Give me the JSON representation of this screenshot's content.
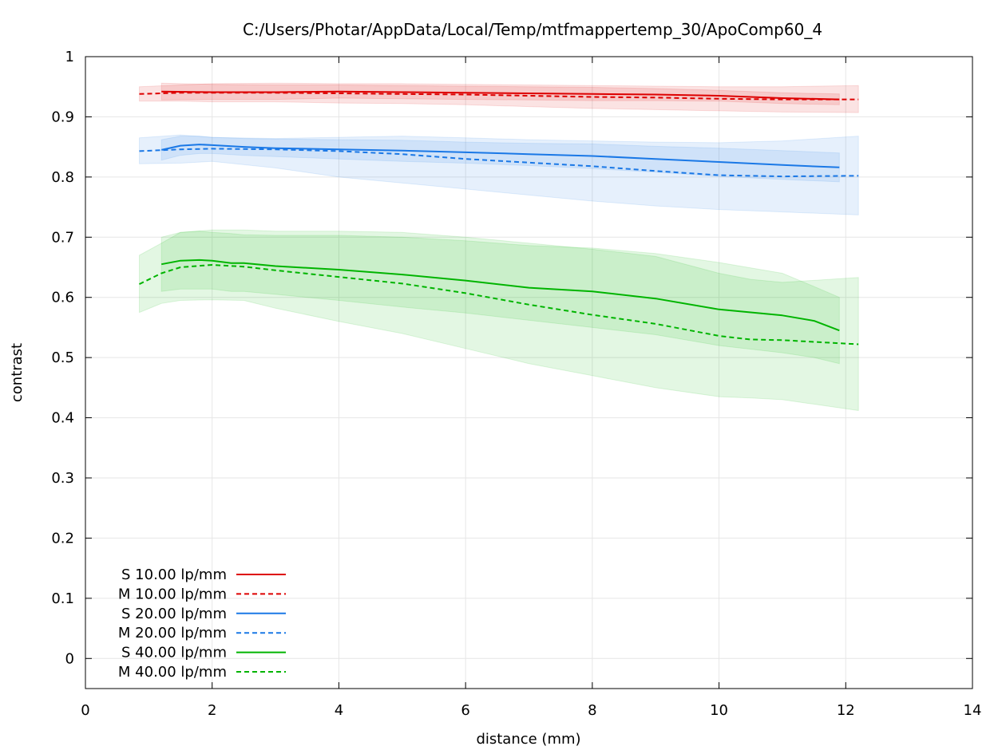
{
  "chart_data": {
    "type": "line",
    "title": "C:/Users/Photar/AppData/Local/Temp/mtfmappertemp_30/ApoComp60_4",
    "xlabel": "distance (mm)",
    "ylabel": "contrast",
    "xlim": [
      0,
      14
    ],
    "ylim": [
      -0.05,
      1.0
    ],
    "xticks": [
      0,
      2,
      4,
      6,
      8,
      10,
      12,
      14
    ],
    "yticks": [
      0,
      0.1,
      0.2,
      0.3,
      0.4,
      0.5,
      0.6,
      0.7,
      0.8,
      0.9,
      1
    ],
    "xtick_labels": [
      "0",
      "2",
      "4",
      "6",
      "8",
      "10",
      "12",
      "14"
    ],
    "ytick_labels": [
      "0",
      "0.1",
      "0.2",
      "0.3",
      "0.4",
      "0.5",
      "0.6",
      "0.7",
      "0.8",
      "0.9",
      "1"
    ],
    "grid": true,
    "legend_position": "bottom-left",
    "series": [
      {
        "name": "S 10.00 lp/mm",
        "color": "#dd0000",
        "dash": "solid",
        "x": [
          1.2,
          2,
          3,
          4,
          5,
          6,
          7,
          8,
          9,
          10,
          11,
          11.9
        ],
        "y": [
          0.942,
          0.941,
          0.941,
          0.942,
          0.941,
          0.94,
          0.939,
          0.938,
          0.937,
          0.935,
          0.931,
          0.929
        ],
        "band_upper": [
          0.956,
          0.954,
          0.953,
          0.953,
          0.952,
          0.951,
          0.95,
          0.949,
          0.947,
          0.944,
          0.94,
          0.938
        ],
        "band_lower": [
          0.928,
          0.929,
          0.929,
          0.931,
          0.93,
          0.929,
          0.928,
          0.927,
          0.927,
          0.926,
          0.922,
          0.92
        ]
      },
      {
        "name": "M 10.00 lp/mm",
        "color": "#dd0000",
        "dash": "dashed",
        "x": [
          0.85,
          1.5,
          2,
          3,
          4,
          5,
          6,
          7,
          8,
          9,
          10,
          11,
          12.2
        ],
        "y": [
          0.938,
          0.94,
          0.94,
          0.94,
          0.939,
          0.938,
          0.937,
          0.935,
          0.933,
          0.932,
          0.93,
          0.929,
          0.929
        ],
        "band_upper": [
          0.95,
          0.953,
          0.955,
          0.956,
          0.955,
          0.955,
          0.954,
          0.953,
          0.952,
          0.951,
          0.95,
          0.95,
          0.952
        ],
        "band_lower": [
          0.926,
          0.926,
          0.925,
          0.925,
          0.923,
          0.922,
          0.92,
          0.917,
          0.914,
          0.912,
          0.91,
          0.908,
          0.907
        ]
      },
      {
        "name": "S 20.00 lp/mm",
        "color": "#1a78e6",
        "dash": "solid",
        "x": [
          1.2,
          1.5,
          1.8,
          2,
          2.5,
          3,
          4,
          5,
          6,
          7,
          8,
          9,
          10,
          11,
          11.9
        ],
        "y": [
          0.845,
          0.852,
          0.854,
          0.853,
          0.85,
          0.848,
          0.846,
          0.844,
          0.841,
          0.838,
          0.835,
          0.83,
          0.825,
          0.82,
          0.816
        ],
        "band_upper": [
          0.862,
          0.868,
          0.868,
          0.866,
          0.864,
          0.863,
          0.862,
          0.861,
          0.858,
          0.856,
          0.855,
          0.851,
          0.848,
          0.844,
          0.84
        ],
        "band_lower": [
          0.828,
          0.836,
          0.839,
          0.839,
          0.836,
          0.834,
          0.83,
          0.826,
          0.823,
          0.819,
          0.814,
          0.808,
          0.801,
          0.796,
          0.792
        ]
      },
      {
        "name": "M 20.00 lp/mm",
        "color": "#1a78e6",
        "dash": "dashed",
        "x": [
          0.85,
          1.5,
          2,
          3,
          4,
          5,
          6,
          7,
          8,
          9,
          10,
          11,
          12.2
        ],
        "y": [
          0.843,
          0.846,
          0.847,
          0.846,
          0.843,
          0.838,
          0.83,
          0.824,
          0.818,
          0.81,
          0.803,
          0.801,
          0.802
        ],
        "band_upper": [
          0.865,
          0.87,
          0.866,
          0.864,
          0.866,
          0.868,
          0.865,
          0.862,
          0.86,
          0.858,
          0.857,
          0.86,
          0.868
        ],
        "band_lower": [
          0.822,
          0.823,
          0.826,
          0.815,
          0.8,
          0.79,
          0.78,
          0.77,
          0.76,
          0.752,
          0.746,
          0.742,
          0.737
        ]
      },
      {
        "name": "S 40.00 lp/mm",
        "color": "#00b400",
        "dash": "solid",
        "x": [
          1.2,
          1.5,
          1.8,
          2,
          2.3,
          2.5,
          3,
          4,
          5,
          6,
          7,
          8,
          9,
          10,
          11,
          11.5,
          11.9
        ],
        "y": [
          0.655,
          0.661,
          0.662,
          0.661,
          0.657,
          0.657,
          0.652,
          0.646,
          0.638,
          0.628,
          0.616,
          0.61,
          0.598,
          0.58,
          0.57,
          0.561,
          0.545
        ],
        "band_upper": [
          0.7,
          0.708,
          0.71,
          0.708,
          0.706,
          0.704,
          0.703,
          0.703,
          0.7,
          0.694,
          0.686,
          0.682,
          0.673,
          0.658,
          0.64,
          0.618,
          0.6
        ],
        "band_lower": [
          0.61,
          0.614,
          0.614,
          0.614,
          0.61,
          0.61,
          0.605,
          0.595,
          0.584,
          0.574,
          0.562,
          0.55,
          0.538,
          0.52,
          0.508,
          0.5,
          0.49
        ]
      },
      {
        "name": "M 40.00 lp/mm",
        "color": "#00b400",
        "dash": "dashed",
        "x": [
          0.85,
          1.2,
          1.5,
          2,
          2.5,
          3,
          4,
          5,
          6,
          7,
          8,
          9,
          10,
          10.5,
          11,
          12.2
        ],
        "y": [
          0.622,
          0.64,
          0.65,
          0.654,
          0.651,
          0.645,
          0.634,
          0.623,
          0.607,
          0.588,
          0.571,
          0.556,
          0.536,
          0.53,
          0.529,
          0.522
        ],
        "band_upper": [
          0.67,
          0.69,
          0.708,
          0.712,
          0.712,
          0.71,
          0.71,
          0.708,
          0.7,
          0.69,
          0.68,
          0.668,
          0.64,
          0.63,
          0.625,
          0.633
        ],
        "band_lower": [
          0.575,
          0.59,
          0.595,
          0.596,
          0.595,
          0.582,
          0.56,
          0.54,
          0.515,
          0.49,
          0.47,
          0.45,
          0.435,
          0.433,
          0.43,
          0.412
        ]
      }
    ]
  }
}
